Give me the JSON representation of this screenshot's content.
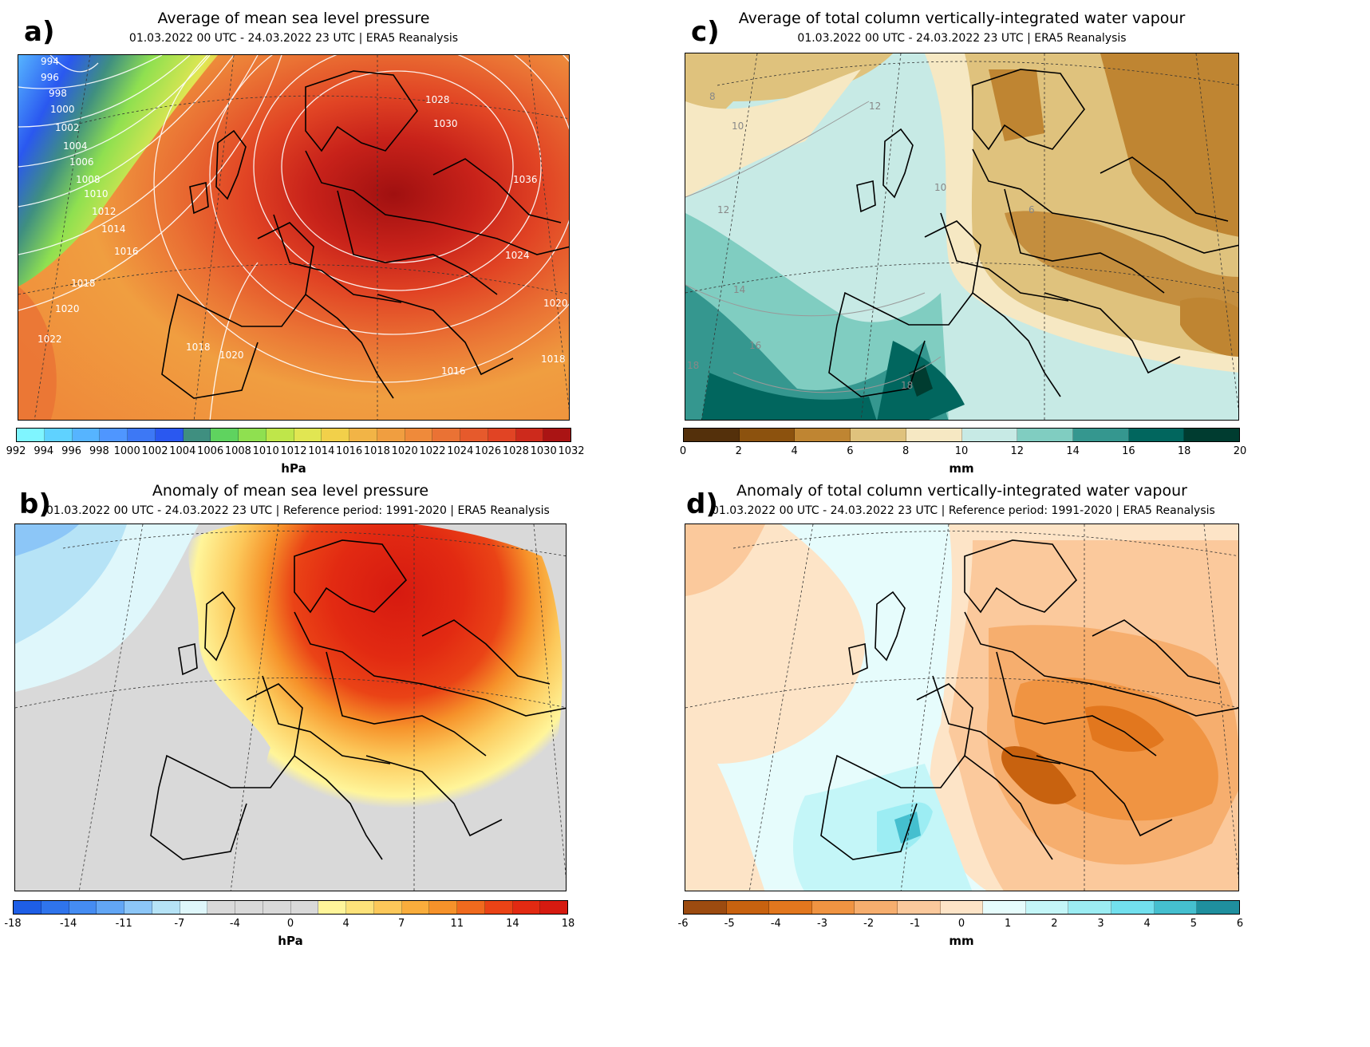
{
  "panels": [
    {
      "label": "a)",
      "title": "Average of mean sea level pressure",
      "subtitle": "01.03.2022 00 UTC - 24.03.2022 23 UTC | ERA5 Reanalysis",
      "unit": "hPa",
      "colorbar_ticks": [
        "992",
        "994",
        "996",
        "998",
        "1000",
        "1002",
        "1004",
        "1006",
        "1008",
        "1010",
        "1012",
        "1014",
        "1016",
        "1018",
        "1020",
        "1022",
        "1024",
        "1026",
        "1028",
        "1030",
        "1032"
      ],
      "colorbar_colors": [
        "#7ff5ff",
        "#5fd2ff",
        "#56b4ff",
        "#4f96ff",
        "#3d78f5",
        "#2a58f0",
        "#3f8f80",
        "#5fd35f",
        "#8fe050",
        "#bfe64a",
        "#e1e652",
        "#f2d04a",
        "#f2b446",
        "#f09e40",
        "#ef8a3a",
        "#ea7234",
        "#e65a2c",
        "#e14424",
        "#cd2a1c",
        "#aa1414"
      ],
      "contour_labels": [
        "994",
        "996",
        "998",
        "1000",
        "1002",
        "1004",
        "1006",
        "1008",
        "1010",
        "1012",
        "1014",
        "1016",
        "1018",
        "1020",
        "1022",
        "1028",
        "1030",
        "1036",
        "1024",
        "1020",
        "1018",
        "1020",
        "1018",
        "1016"
      ]
    },
    {
      "label": "b)",
      "title": "Anomaly of mean sea level pressure",
      "subtitle": "01.03.2022 00 UTC - 24.03.2022 23 UTC | Reference period: 1991-2020 | ERA5 Reanalysis",
      "unit": "hPa",
      "colorbar_ticks": [
        "-18",
        "-14",
        "-11",
        "-7",
        "-4",
        "0",
        "4",
        "7",
        "11",
        "14",
        "18"
      ],
      "colorbar_colors": [
        "#1e5ee6",
        "#2f74ec",
        "#458cf2",
        "#62a6f5",
        "#8cc6f7",
        "#b6e3f6",
        "#dff7fb",
        "#d9d9d9",
        "#d9d9d9",
        "#d9d9d9",
        "#d9d9d9",
        "#fff59a",
        "#fde27a",
        "#fcc85a",
        "#f9ad3c",
        "#f6922a",
        "#f06a1e",
        "#ea4316",
        "#e22a12",
        "#d61a10"
      ]
    },
    {
      "label": "c)",
      "title": "Average of total column vertically-integrated water vapour",
      "subtitle": "01.03.2022 00 UTC - 24.03.2022 23 UTC | ERA5 Reanalysis",
      "unit": "mm",
      "colorbar_ticks": [
        "0",
        "2",
        "4",
        "6",
        "8",
        "10",
        "12",
        "14",
        "16",
        "18",
        "20"
      ],
      "colorbar_colors": [
        "#54300b",
        "#8c520e",
        "#bf8532",
        "#dfc27d",
        "#f6e8c3",
        "#c7eae5",
        "#80cdc1",
        "#35978f",
        "#01665e",
        "#003c30"
      ],
      "contour_labels": [
        "8",
        "10",
        "12",
        "14",
        "16",
        "18",
        "18",
        "10",
        "6",
        "12"
      ]
    },
    {
      "label": "d)",
      "title": "Anomaly of total column vertically-integrated water vapour",
      "subtitle": "01.03.2022 00 UTC - 24.03.2022 23 UTC | Reference period: 1991-2020 | ERA5 Reanalysis",
      "unit": "mm",
      "colorbar_ticks": [
        "-6",
        "-5",
        "-4",
        "-3",
        "-2",
        "-1",
        "0",
        "1",
        "2",
        "3",
        "4",
        "5",
        "6"
      ],
      "colorbar_colors": [
        "#9c4b10",
        "#c8620f",
        "#e2771e",
        "#f09442",
        "#f6ae6e",
        "#fbc99c",
        "#fde4c7",
        "#e6fcfc",
        "#c4f6f8",
        "#9cedf3",
        "#72e0ee",
        "#45bfcf",
        "#1f8f9e"
      ]
    }
  ]
}
